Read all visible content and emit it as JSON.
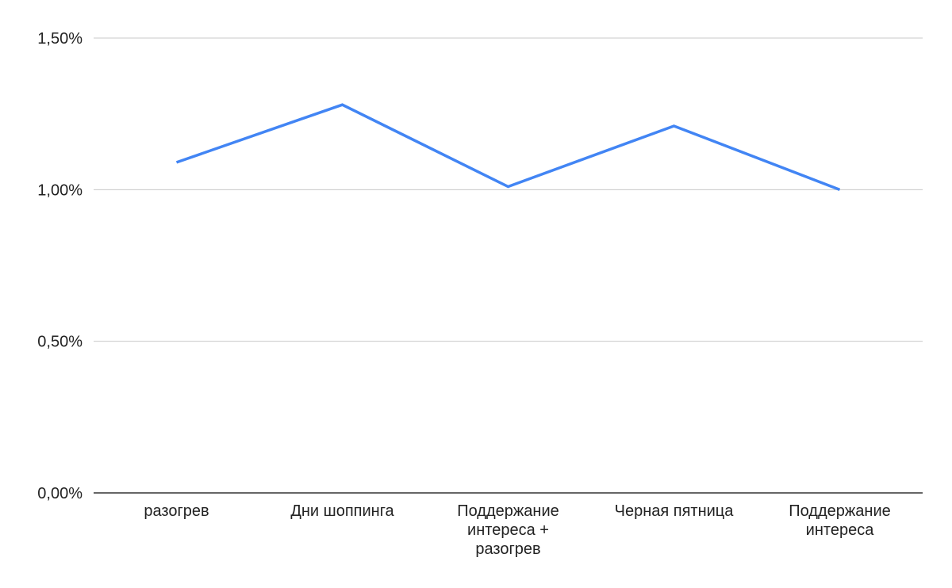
{
  "chart_data": {
    "type": "line",
    "title": "",
    "xlabel": "",
    "ylabel": "",
    "categories": [
      "разогрев",
      "Дни шоппинга",
      "Поддержание интереса + разогрев",
      "Черная пятница",
      "Поддержание интереса"
    ],
    "category_lines": [
      [
        "разогрев"
      ],
      [
        "Дни шоппинга"
      ],
      [
        "Поддержание",
        "интереса +",
        "разогрев"
      ],
      [
        "Черная пятница"
      ],
      [
        "Поддержание",
        "интереса"
      ]
    ],
    "series": [
      {
        "values": [
          1.09,
          1.28,
          1.01,
          1.21,
          1.0
        ],
        "color": "#4285f4"
      }
    ],
    "ylim": [
      0,
      1.5
    ],
    "yticks": [
      0,
      0.5,
      1.0,
      1.5
    ],
    "ytick_labels": [
      "0,00%",
      "0,50%",
      "1,00%",
      "1,50%"
    ],
    "y_unit": "%",
    "grid": true,
    "legend": "none"
  }
}
